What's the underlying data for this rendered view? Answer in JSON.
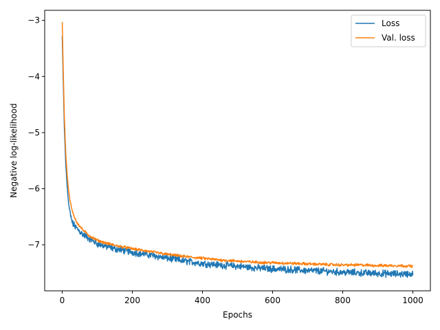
{
  "chart_data": {
    "type": "line",
    "title": "",
    "xlabel": "Epochs",
    "ylabel": "Negative log-likelihood",
    "xlim": [
      -50,
      1050
    ],
    "ylim": [
      -7.82,
      -2.82
    ],
    "xticks": [
      0,
      200,
      400,
      600,
      800,
      1000
    ],
    "yticks": [
      -3,
      -4,
      -5,
      -6,
      -7
    ],
    "xtick_labels": [
      "0",
      "200",
      "400",
      "600",
      "800",
      "1000"
    ],
    "ytick_labels": [
      "−3",
      "−4",
      "−5",
      "−6",
      "−7"
    ],
    "grid": false,
    "legend_position": "top-right",
    "series": [
      {
        "name": "Loss",
        "color": "#1f77b4",
        "x": [
          0,
          3,
          6,
          10,
          14,
          18,
          22,
          26,
          30,
          40,
          50,
          60,
          70,
          80,
          100,
          125,
          150,
          175,
          200,
          250,
          300,
          350,
          400,
          450,
          500,
          550,
          600,
          650,
          700,
          750,
          800,
          850,
          900,
          950,
          1000
        ],
        "y": [
          -3.28,
          -4.1,
          -4.9,
          -5.55,
          -5.95,
          -6.25,
          -6.42,
          -6.55,
          -6.62,
          -6.7,
          -6.76,
          -6.82,
          -6.86,
          -6.9,
          -6.98,
          -7.03,
          -7.07,
          -7.1,
          -7.13,
          -7.18,
          -7.24,
          -7.29,
          -7.33,
          -7.36,
          -7.38,
          -7.41,
          -7.43,
          -7.44,
          -7.46,
          -7.47,
          -7.49,
          -7.5,
          -7.51,
          -7.52,
          -7.52
        ],
        "noise": 0.05
      },
      {
        "name": "Val. loss",
        "color": "#ff7f0e",
        "x": [
          0,
          3,
          6,
          10,
          14,
          18,
          22,
          26,
          30,
          40,
          50,
          60,
          70,
          80,
          100,
          125,
          150,
          175,
          200,
          250,
          300,
          350,
          400,
          450,
          500,
          550,
          600,
          650,
          700,
          750,
          800,
          850,
          900,
          950,
          1000
        ],
        "y": [
          -3.03,
          -3.9,
          -4.7,
          -5.35,
          -5.75,
          -6.02,
          -6.2,
          -6.33,
          -6.43,
          -6.58,
          -6.67,
          -6.74,
          -6.8,
          -6.85,
          -6.92,
          -6.97,
          -7.01,
          -7.04,
          -7.07,
          -7.12,
          -7.17,
          -7.21,
          -7.24,
          -7.27,
          -7.29,
          -7.31,
          -7.32,
          -7.33,
          -7.34,
          -7.35,
          -7.36,
          -7.36,
          -7.37,
          -7.37,
          -7.38
        ],
        "noise": 0.02
      }
    ]
  }
}
